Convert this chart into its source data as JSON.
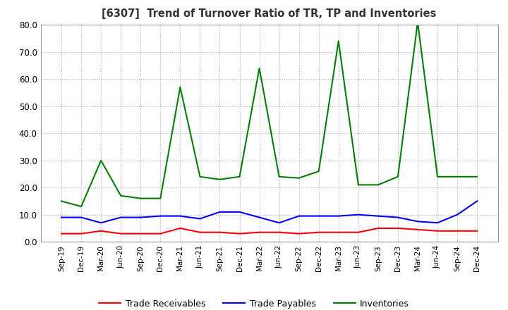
{
  "title": "[6307]  Trend of Turnover Ratio of TR, TP and Inventories",
  "x_labels": [
    "Sep-19",
    "Dec-19",
    "Mar-20",
    "Jun-20",
    "Sep-20",
    "Dec-20",
    "Mar-21",
    "Jun-21",
    "Sep-21",
    "Dec-21",
    "Mar-22",
    "Jun-22",
    "Sep-22",
    "Dec-22",
    "Mar-23",
    "Jun-23",
    "Sep-23",
    "Dec-23",
    "Mar-24",
    "Jun-24",
    "Sep-24",
    "Dec-24"
  ],
  "ylim": [
    0,
    80
  ],
  "yticks": [
    0,
    10,
    20,
    30,
    40,
    50,
    60,
    70,
    80
  ],
  "trade_receivables": [
    3.0,
    3.0,
    4.0,
    3.0,
    3.0,
    3.0,
    5.0,
    3.5,
    3.5,
    3.0,
    3.5,
    3.5,
    3.0,
    3.5,
    3.5,
    3.5,
    5.0,
    5.0,
    4.5,
    4.0,
    4.0,
    4.0
  ],
  "trade_payables": [
    9.0,
    9.0,
    7.0,
    9.0,
    9.0,
    9.5,
    9.5,
    8.5,
    11.0,
    11.0,
    9.0,
    7.0,
    9.5,
    9.5,
    9.5,
    10.0,
    9.5,
    9.0,
    7.5,
    7.0,
    10.0,
    15.0
  ],
  "inventories": [
    15.0,
    13.0,
    30.0,
    17.0,
    16.0,
    16.0,
    57.0,
    24.0,
    23.0,
    24.0,
    64.0,
    24.0,
    23.5,
    26.0,
    74.0,
    21.0,
    21.0,
    24.0,
    81.0,
    24.0,
    24.0,
    24.0
  ],
  "tr_color": "#ff0000",
  "tp_color": "#0000ff",
  "inv_color": "#008000",
  "legend_labels": [
    "Trade Receivables",
    "Trade Payables",
    "Inventories"
  ],
  "background_color": "#ffffff",
  "grid_color": "#aaaaaa"
}
